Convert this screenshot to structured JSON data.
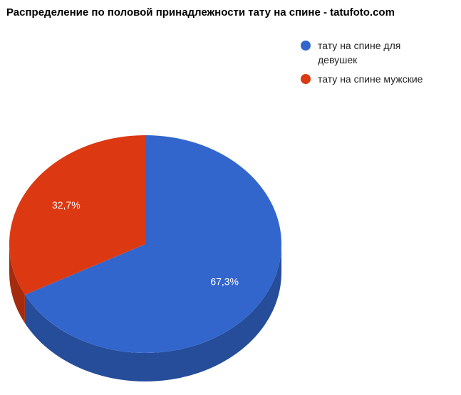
{
  "chart_data": {
    "type": "pie",
    "title": "Распределение по половой принадлежности тату на спине - tatufoto.com",
    "categories": [
      "тату на спине для девушек",
      "тату на спине мужские"
    ],
    "values": [
      67.3,
      32.7
    ],
    "value_labels": [
      "67,3%",
      "32,7%"
    ],
    "colors": [
      "#3366cc",
      "#dc3912"
    ],
    "is3D": true,
    "legend": "right"
  }
}
